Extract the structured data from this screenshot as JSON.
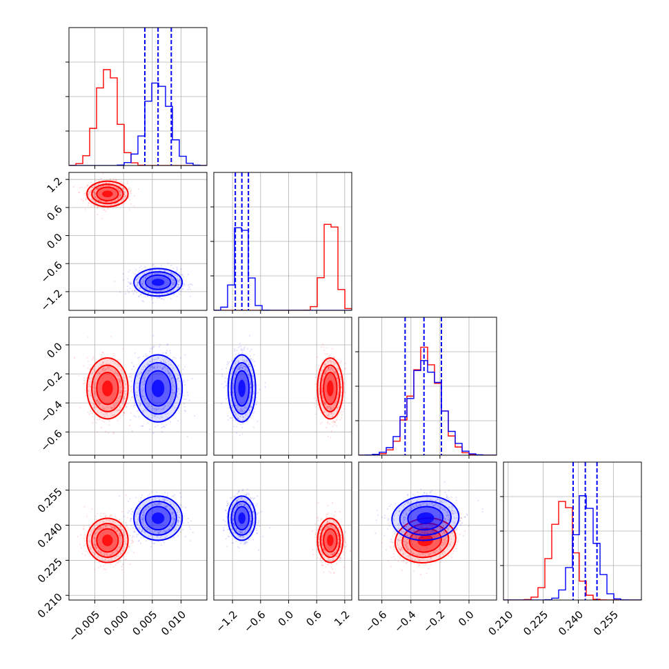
{
  "colors": {
    "red": "#ff0000",
    "blue": "#0000ff",
    "grid": "#b0b0b0"
  },
  "chart_data": {
    "type": "corner",
    "grid": true,
    "parameters": [
      {
        "range": [
          -0.0095,
          0.0145
        ],
        "ticks": [
          -0.005,
          0.0,
          0.005,
          0.01
        ],
        "tick_labels": [
          "−0.005",
          "0.000",
          "0.005",
          "0.010"
        ]
      },
      {
        "range": [
          -1.6,
          1.35
        ],
        "ticks": [
          -1.2,
          -0.6,
          0.0,
          0.6,
          1.2
        ],
        "tick_labels": [
          "−1.2",
          "−0.6",
          "0.0",
          "0.6",
          "1.2"
        ]
      },
      {
        "range": [
          -0.76,
          0.19
        ],
        "ticks": [
          -0.6,
          -0.4,
          -0.2,
          0.0
        ],
        "tick_labels": [
          "−0.6",
          "−0.4",
          "−0.2",
          "0.0"
        ]
      },
      {
        "range": [
          0.208,
          0.267
        ],
        "ticks": [
          0.21,
          0.225,
          0.24,
          0.255
        ],
        "tick_labels": [
          "0.210",
          "0.225",
          "0.240",
          "0.255"
        ]
      }
    ],
    "series": [
      {
        "color": "#ff0000",
        "means": [
          -0.0028,
          0.89,
          -0.3,
          0.2335
        ],
        "sds": [
          0.0017,
          0.13,
          0.1,
          0.0045
        ],
        "corr": {
          "2-3": 0.35
        }
      },
      {
        "color": "#0000ff",
        "means": [
          0.006,
          -1.0,
          -0.3,
          0.243
        ],
        "sds": [
          0.002,
          0.14,
          0.11,
          0.0045
        ],
        "corr": {
          "2-3": 0.15
        }
      }
    ],
    "quantile_lines": [
      [
        0.0037,
        0.006,
        0.0083
      ],
      [
        -1.14,
        -1.0,
        -0.86
      ],
      [
        -0.44,
        -0.31,
        -0.19
      ],
      [
        0.2378,
        0.243,
        0.248
      ]
    ]
  }
}
